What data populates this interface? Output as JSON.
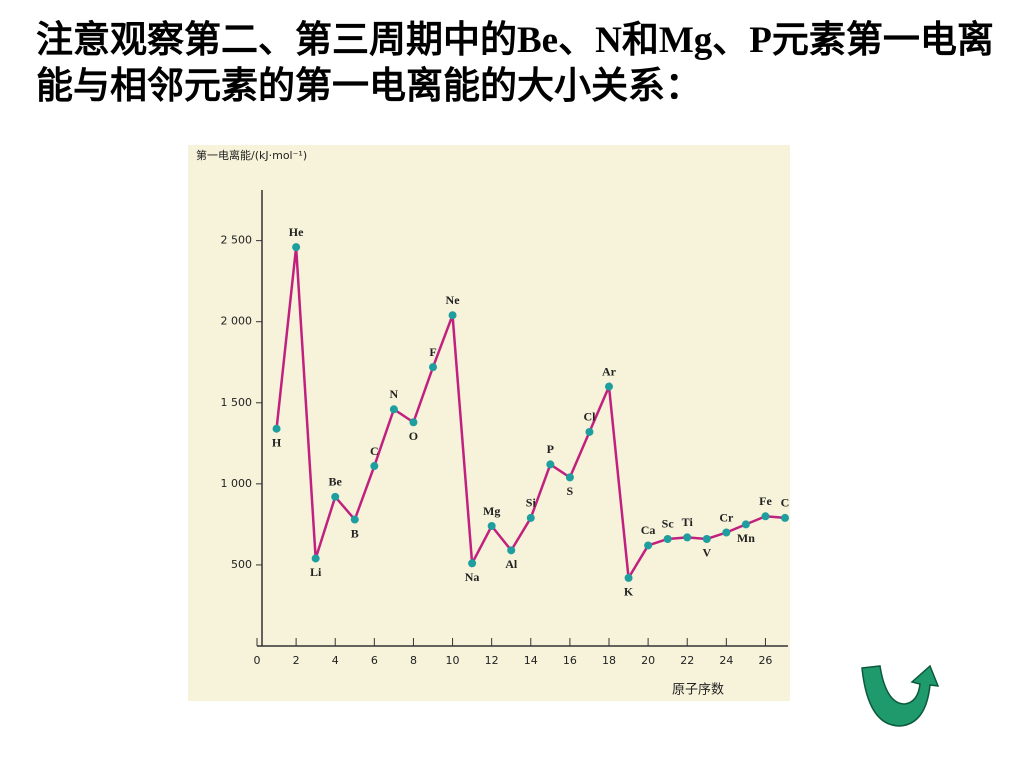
{
  "slide_text": "注意观察第二、第三周期中的Be、N和Mg、P元素第一电离能与相邻元素的第一电离能的大小关系：",
  "chart_data": {
    "type": "line",
    "ylabel": "第一电离能/(kJ·mol⁻¹)",
    "xlabel": "原子序数",
    "x": [
      1,
      2,
      3,
      4,
      5,
      6,
      7,
      8,
      9,
      10,
      11,
      12,
      13,
      14,
      15,
      16,
      17,
      18,
      19,
      20,
      21,
      22,
      23,
      24,
      25,
      26,
      27
    ],
    "point_labels": [
      "H",
      "He",
      "Li",
      "Be",
      "B",
      "C",
      "N",
      "O",
      "F",
      "Ne",
      "Na",
      "Mg",
      "Al",
      "Si",
      "P",
      "S",
      "Cl",
      "Ar",
      "K",
      "Ca",
      "Sc",
      "Ti",
      "V",
      "Cr",
      "Mn",
      "Fe",
      "C"
    ],
    "series": [
      {
        "color": "#c2207f",
        "marker_color": "#1f9ea0",
        "values": [
          1340,
          2460,
          540,
          920,
          780,
          1110,
          1460,
          1380,
          1720,
          2040,
          510,
          740,
          590,
          790,
          1120,
          1040,
          1320,
          1600,
          420,
          620,
          660,
          670,
          660,
          700,
          750,
          800,
          790
        ]
      }
    ],
    "xlim": [
      0,
      27
    ],
    "ylim": [
      0,
      2800
    ],
    "xticks": [
      0,
      2,
      4,
      6,
      8,
      10,
      12,
      14,
      16,
      18,
      20,
      22,
      24,
      26
    ],
    "yticks": [
      {
        "value": 500,
        "label": "500"
      },
      {
        "value": 1000,
        "label": "1 000"
      },
      {
        "value": 1500,
        "label": "1 500"
      },
      {
        "value": 2000,
        "label": "2 000"
      },
      {
        "value": 2500,
        "label": "2 500"
      }
    ]
  }
}
